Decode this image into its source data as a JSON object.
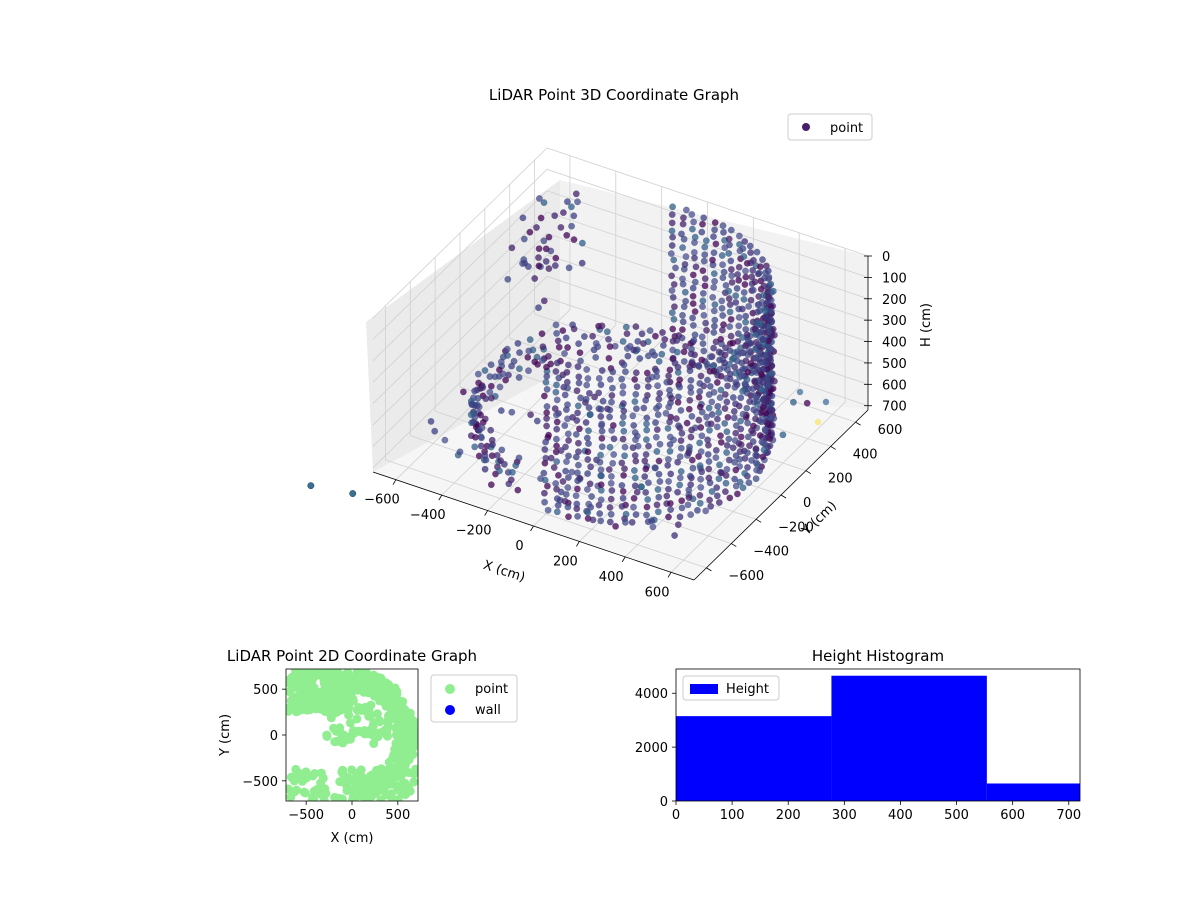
{
  "chart_data": [
    {
      "type": "scatter",
      "title": "LiDAR Point 3D Coordinate Graph",
      "xlabel": "X (cm)",
      "ylabel": "Y (cm)",
      "zlabel": "H (cm)",
      "xlim": [
        -700,
        700
      ],
      "ylim": [
        -700,
        700
      ],
      "zlim": [
        0,
        720
      ],
      "x_ticks": [
        -600,
        -400,
        -200,
        0,
        200,
        400,
        600
      ],
      "y_ticks": [
        -600,
        -400,
        -200,
        0,
        200,
        400,
        600
      ],
      "z_ticks": [
        0,
        100,
        200,
        300,
        400,
        500,
        600,
        700
      ],
      "z_inverted": true,
      "grid": true,
      "legend": {
        "position": "top-right",
        "entries": [
          "point"
        ]
      },
      "colormap": "viridis",
      "series": [
        {
          "name": "point",
          "color": "#46206b",
          "description_shape": "dense curved wall of points forming a half-cylinder arc of radius ~650 cm, with sparse outliers"
        }
      ],
      "outliers": [
        {
          "x": -680,
          "y": -900,
          "h": 700
        },
        {
          "x": -700,
          "y": -1200,
          "h": 500
        },
        {
          "x": 660,
          "y": -1050,
          "h": 100
        }
      ]
    },
    {
      "type": "scatter",
      "title": "LiDAR Point 2D Coordinate Graph",
      "xlabel": "X (cm)",
      "ylabel": "Y (cm)",
      "xlim": [
        -720,
        720
      ],
      "ylim": [
        -720,
        720
      ],
      "x_ticks": [
        -500,
        0,
        500
      ],
      "y_ticks": [
        -500,
        0,
        500
      ],
      "legend": {
        "position": "right",
        "entries": [
          "point",
          "wall"
        ]
      },
      "series": [
        {
          "name": "point",
          "color": "#90ee90"
        },
        {
          "name": "wall",
          "color": "#0000ff"
        }
      ]
    },
    {
      "type": "bar",
      "title": "Height Histogram",
      "bins": [
        [
          0,
          277
        ],
        [
          277,
          554
        ],
        [
          554,
          720
        ]
      ],
      "values": [
        3150,
        4650,
        650
      ],
      "xlim": [
        0,
        720
      ],
      "ylim": [
        0,
        4900
      ],
      "x_ticks": [
        0,
        100,
        200,
        300,
        400,
        500,
        600,
        700
      ],
      "y_ticks": [
        0,
        2000,
        4000
      ],
      "color": "#0000ff",
      "legend": {
        "position": "top-left",
        "entries": [
          "Height"
        ]
      }
    }
  ]
}
